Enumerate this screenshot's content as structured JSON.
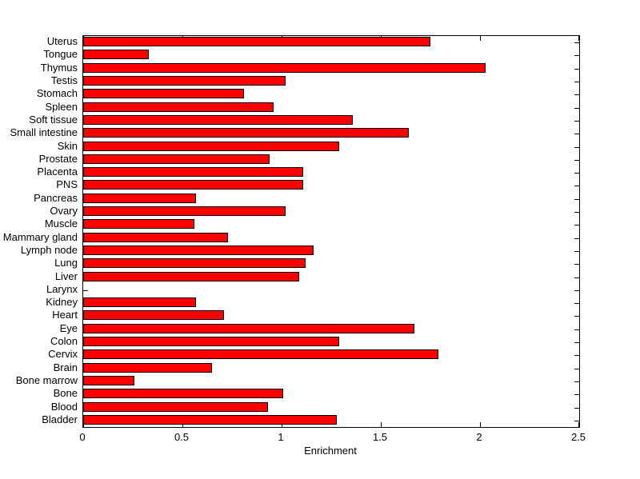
{
  "chart_data": {
    "type": "bar",
    "orientation": "horizontal",
    "title": "",
    "xlabel": "Enrichment",
    "ylabel": "",
    "xlim": [
      0,
      2.5
    ],
    "xticks": [
      0,
      0.5,
      1,
      1.5,
      2,
      2.5
    ],
    "xtick_labels": [
      "0",
      "0.5",
      "1",
      "1.5",
      "2",
      "2.5"
    ],
    "grid": false,
    "legend": "none",
    "bar_color": "#ff0000",
    "bar_edge_color": "#000000",
    "axis_color": "#000000",
    "background_color": "#ffffff",
    "categories": [
      "Uterus",
      "Tongue",
      "Thymus",
      "Testis",
      "Stomach",
      "Spleen",
      "Soft tissue",
      "Small intestine",
      "Skin",
      "Prostate",
      "Placenta",
      "PNS",
      "Pancreas",
      "Ovary",
      "Muscle",
      "Mammary gland",
      "Lymph node",
      "Lung",
      "Liver",
      "Larynx",
      "Kidney",
      "Heart",
      "Eye",
      "Colon",
      "Cervix",
      "Brain",
      "Bone marrow",
      "Bone",
      "Blood",
      "Bladder"
    ],
    "values": [
      1.75,
      0.33,
      2.03,
      1.02,
      0.81,
      0.96,
      1.36,
      1.64,
      1.29,
      0.94,
      1.11,
      1.11,
      0.57,
      1.02,
      0.56,
      0.73,
      1.16,
      1.12,
      1.09,
      0.0,
      0.57,
      0.71,
      1.67,
      1.29,
      1.79,
      0.65,
      0.26,
      1.01,
      0.93,
      1.28
    ]
  }
}
